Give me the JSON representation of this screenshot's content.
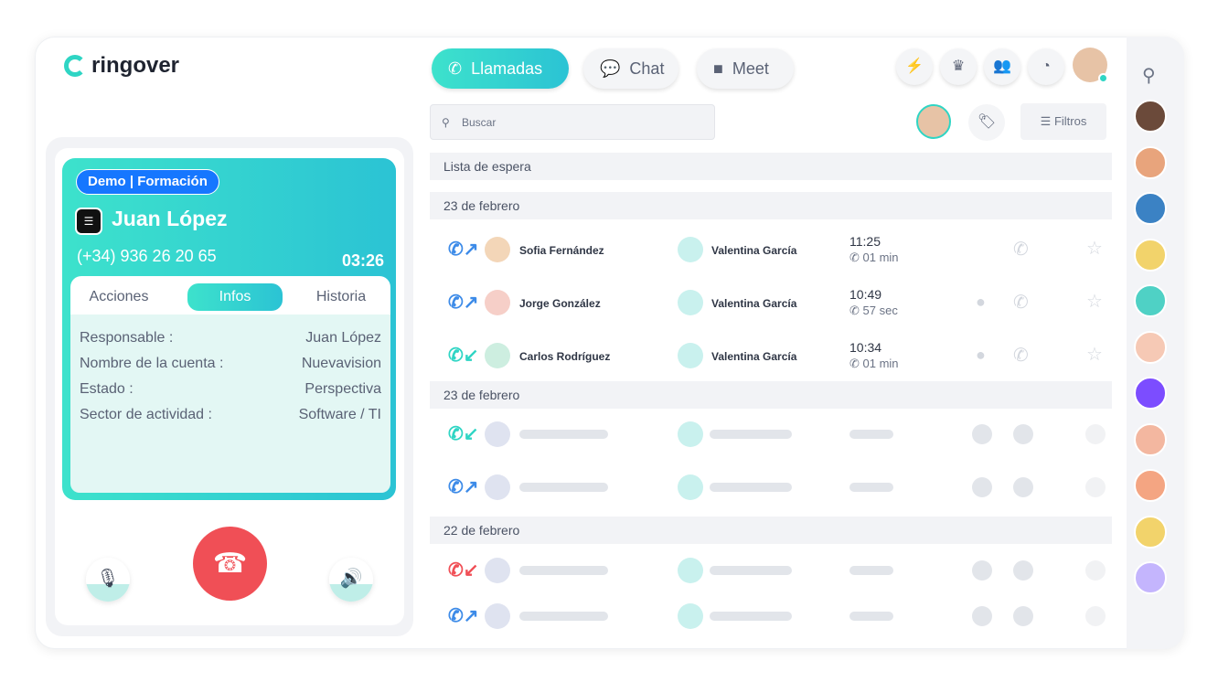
{
  "app": {
    "brand": "ringover"
  },
  "nav": {
    "tabs": [
      {
        "label": "Llamadas",
        "icon": "phone-icon",
        "active": true
      },
      {
        "label": "Chat",
        "icon": "chat-icon"
      },
      {
        "label": "Meet",
        "icon": "video-icon"
      }
    ],
    "right_icons": [
      "lightning-icon",
      "crown-icon",
      "team-icon",
      "stats-icon"
    ]
  },
  "call": {
    "tag": "Demo | Formación",
    "name": "Juan López",
    "phone": "(+34) 936 26 20 65",
    "timer": "03:26",
    "tabs": [
      "Acciones",
      "Infos",
      "Historia"
    ],
    "active_tab": "Infos",
    "info": [
      {
        "k": "Responsable :",
        "v": "Juan López"
      },
      {
        "k": "Nombre de la cuenta :",
        "v": "Nuevavision"
      },
      {
        "k": "Estado :",
        "v": "Perspectiva"
      },
      {
        "k": "Sector de actividad :",
        "v": "Software / TI"
      }
    ]
  },
  "list": {
    "search_placeholder": "Buscar",
    "filter_label": "Filtros",
    "waiting": "Lista de espera",
    "sections": [
      "23 de febrero",
      "23 de febrero",
      "22 de febrero"
    ],
    "rows": [
      {
        "dir": "outgoing",
        "contact": "Sofia Fernández",
        "agent": "Valentina García",
        "time": "11:25",
        "duration": "01 min"
      },
      {
        "dir": "outgoing",
        "contact": "Jorge González",
        "agent": "Valentina García",
        "time": "10:49",
        "duration": "57 sec"
      },
      {
        "dir": "incoming",
        "contact": "Carlos Rodríguez",
        "agent": "Valentina García",
        "time": "10:34",
        "duration": "01 min"
      }
    ]
  },
  "colors": {
    "accent": "#2fd5c4",
    "outgoing": "#3d8be8",
    "incoming": "#2fd5c4",
    "missed": "#f04f56",
    "hangup": "#f04f56",
    "badge": "#1677ff"
  }
}
